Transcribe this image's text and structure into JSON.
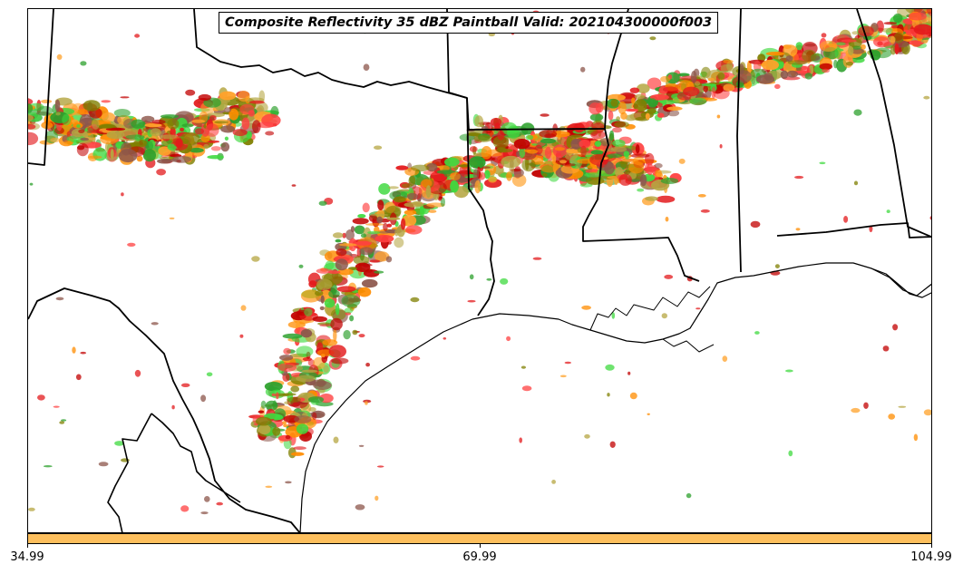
{
  "title": "Composite Reflectivity 35 dBZ Paintball Valid: 202104300000f003",
  "colorbar": {
    "color": "#fdbf5d",
    "ticks": [
      "34.99",
      "69.99",
      "104.99"
    ]
  },
  "map": {
    "region": "US Gulf Coast / Texas / Louisiana",
    "boundary_color": "#000000",
    "member_colors": [
      "#ff8c00",
      "#ffa12a",
      "#e31a1c",
      "#ff4040",
      "#c20000",
      "#2ca02c",
      "#3fd93f",
      "#8c564b",
      "#b5a642",
      "#7f7f00"
    ]
  }
}
